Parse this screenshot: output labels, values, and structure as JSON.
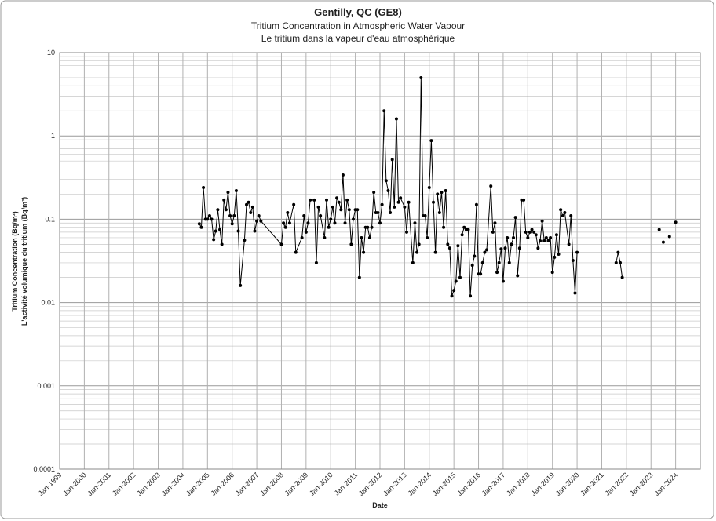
{
  "chart_data": {
    "type": "line",
    "title": "Gentilly, QC (GE8)",
    "subtitle": "Tritium Concentration in Atmospheric Water Vapour",
    "subtitle2": "Le tritium dans la vapeur d'eau atmosphérique",
    "x_label": "Date",
    "y_label": "Tritium Concentration (Bq/m³)",
    "y_label2": "L'activité volumique du tritium (Bq/m³)",
    "log_y": true,
    "grid": true,
    "color": "#000000",
    "xlim": [
      "1999-01",
      "2025-01"
    ],
    "xticks": [
      {
        "value": "1999-01",
        "label": "Jan-1999"
      },
      {
        "value": "2000-01",
        "label": "Jan-2000"
      },
      {
        "value": "2001-01",
        "label": "Jan-2001"
      },
      {
        "value": "2002-01",
        "label": "Jan-2002"
      },
      {
        "value": "2003-01",
        "label": "Jan-2003"
      },
      {
        "value": "2004-01",
        "label": "Jan-2004"
      },
      {
        "value": "2005-01",
        "label": "Jan-2005"
      },
      {
        "value": "2006-01",
        "label": "Jan-2006"
      },
      {
        "value": "2007-01",
        "label": "Jan-2007"
      },
      {
        "value": "2008-01",
        "label": "Jan-2008"
      },
      {
        "value": "2009-01",
        "label": "Jan-2009"
      },
      {
        "value": "2010-01",
        "label": "Jan-2010"
      },
      {
        "value": "2011-01",
        "label": "Jan-2011"
      },
      {
        "value": "2012-01",
        "label": "Jan-2012"
      },
      {
        "value": "2013-01",
        "label": "Jan-2013"
      },
      {
        "value": "2014-01",
        "label": "Jan-2014"
      },
      {
        "value": "2015-01",
        "label": "Jan-2015"
      },
      {
        "value": "2016-01",
        "label": "Jan-2016"
      },
      {
        "value": "2017-01",
        "label": "Jan-2017"
      },
      {
        "value": "2018-01",
        "label": "Jan-2018"
      },
      {
        "value": "2019-01",
        "label": "Jan-2019"
      },
      {
        "value": "2020-01",
        "label": "Jan-2020"
      },
      {
        "value": "2021-01",
        "label": "Jan-2021"
      },
      {
        "value": "2022-01",
        "label": "Jan-2022"
      },
      {
        "value": "2023-01",
        "label": "Jan-2023"
      },
      {
        "value": "2024-01",
        "label": "Jan-2024"
      }
    ],
    "ylim": [
      0.0001,
      10
    ],
    "yticks": [
      0.0001,
      0.001,
      0.01,
      0.1,
      1,
      10
    ],
    "x": [
      "2004-09",
      "2004-10",
      "2004-11",
      "2004-12",
      "2005-01",
      "2005-02",
      "2005-03",
      "2005-04",
      "2005-05",
      "2005-06",
      "2005-07",
      "2005-08",
      "2005-09",
      "2005-10",
      "2005-11",
      "2005-12",
      "2006-01",
      "2006-02",
      "2006-03",
      "2006-04",
      "2006-05",
      "2006-07",
      "2006-08",
      "2006-09",
      "2006-10",
      "2006-11",
      "2006-12",
      "2007-01",
      "2007-02",
      "2007-03",
      "2008-01",
      "2008-02",
      "2008-03",
      "2008-04",
      "2008-05",
      "2008-07",
      "2008-08",
      "2008-11",
      "2008-12",
      "2009-01",
      "2009-02",
      "2009-03",
      "2009-05",
      "2009-06",
      "2009-07",
      "2009-08",
      "2009-10",
      "2009-11",
      "2009-12",
      "2010-01",
      "2010-02",
      "2010-03",
      "2010-04",
      "2010-05",
      "2010-06",
      "2010-07",
      "2010-08",
      "2010-09",
      "2010-10",
      "2010-11",
      "2010-12",
      "2011-01",
      "2011-02",
      "2011-03",
      "2011-04",
      "2011-05",
      "2011-06",
      "2011-07",
      "2011-08",
      "2011-09",
      "2011-10",
      "2011-11",
      "2011-12",
      "2012-01",
      "2012-02",
      "2012-03",
      "2012-04",
      "2012-05",
      "2012-06",
      "2012-07",
      "2012-08",
      "2012-09",
      "2012-10",
      "2012-11",
      "2013-01",
      "2013-02",
      "2013-03",
      "2013-05",
      "2013-06",
      "2013-07",
      "2013-08",
      "2013-09",
      "2013-10",
      "2013-11",
      "2013-12",
      "2014-01",
      "2014-02",
      "2014-03",
      "2014-04",
      "2014-05",
      "2014-06",
      "2014-07",
      "2014-08",
      "2014-09",
      "2014-10",
      "2014-11",
      "2014-12",
      "2015-01",
      "2015-02",
      "2015-03",
      "2015-04",
      "2015-05",
      "2015-06",
      "2015-07",
      "2015-08",
      "2015-09",
      "2015-10",
      "2015-11",
      "2015-12",
      "2016-01",
      "2016-02",
      "2016-03",
      "2016-04",
      "2016-05",
      "2016-07",
      "2016-08",
      "2016-09",
      "2016-10",
      "2016-11",
      "2016-12",
      "2017-01",
      "2017-02",
      "2017-03",
      "2017-04",
      "2017-05",
      "2017-06",
      "2017-07",
      "2017-08",
      "2017-09",
      "2017-10",
      "2017-11",
      "2017-12",
      "2018-01",
      "2018-02",
      "2018-03",
      "2018-04",
      "2018-05",
      "2018-06",
      "2018-07",
      "2018-08",
      "2018-09",
      "2018-10",
      "2018-11",
      "2018-12",
      "2019-01",
      "2019-02",
      "2019-03",
      "2019-04",
      "2019-05",
      "2019-06",
      "2019-07",
      "2019-09",
      "2019-10",
      "2019-11",
      "2019-12",
      "2020-01",
      null,
      "2021-08",
      "2021-09",
      "2021-10",
      "2021-11",
      null,
      "2023-05",
      null,
      "2023-07",
      null,
      "2023-10",
      null,
      "2024-01"
    ],
    "values": [
      0.088,
      0.08,
      0.24,
      0.1,
      0.1,
      0.11,
      0.1,
      0.057,
      0.072,
      0.13,
      0.075,
      0.05,
      0.17,
      0.13,
      0.21,
      0.11,
      0.088,
      0.11,
      0.22,
      0.072,
      0.016,
      0.056,
      0.15,
      0.16,
      0.12,
      0.14,
      0.072,
      0.095,
      0.11,
      0.095,
      0.05,
      0.09,
      0.08,
      0.12,
      0.09,
      0.15,
      0.04,
      0.06,
      0.11,
      0.07,
      0.09,
      0.17,
      0.17,
      0.03,
      0.14,
      0.11,
      0.06,
      0.17,
      0.08,
      0.1,
      0.14,
      0.09,
      0.18,
      0.16,
      0.13,
      0.34,
      0.09,
      0.17,
      0.13,
      0.05,
      0.1,
      0.13,
      0.13,
      0.02,
      0.06,
      0.04,
      0.08,
      0.08,
      0.06,
      0.08,
      0.21,
      0.12,
      0.12,
      0.09,
      0.15,
      2.0,
      0.29,
      0.22,
      0.12,
      0.52,
      0.14,
      1.6,
      0.16,
      0.18,
      0.14,
      0.07,
      0.16,
      0.03,
      0.09,
      0.04,
      0.05,
      5.0,
      0.11,
      0.11,
      0.06,
      0.24,
      0.88,
      0.16,
      0.04,
      0.2,
      0.12,
      0.21,
      0.08,
      0.22,
      0.05,
      0.045,
      0.012,
      0.014,
      0.018,
      0.048,
      0.02,
      0.065,
      0.08,
      0.075,
      0.075,
      0.012,
      0.028,
      0.036,
      0.15,
      0.022,
      0.022,
      0.03,
      0.04,
      0.043,
      0.25,
      0.07,
      0.09,
      0.023,
      0.03,
      0.044,
      0.018,
      0.045,
      0.06,
      0.03,
      0.05,
      0.06,
      0.105,
      0.021,
      0.045,
      0.17,
      0.17,
      0.07,
      0.06,
      0.07,
      0.075,
      0.07,
      0.065,
      0.045,
      0.055,
      0.095,
      0.055,
      0.06,
      0.055,
      0.06,
      0.023,
      0.035,
      0.065,
      0.038,
      0.13,
      0.11,
      0.12,
      0.05,
      0.11,
      0.032,
      0.013,
      0.04,
      null,
      0.03,
      0.04,
      0.03,
      0.02,
      null,
      0.075,
      null,
      0.053,
      null,
      0.062,
      null,
      0.092
    ]
  }
}
